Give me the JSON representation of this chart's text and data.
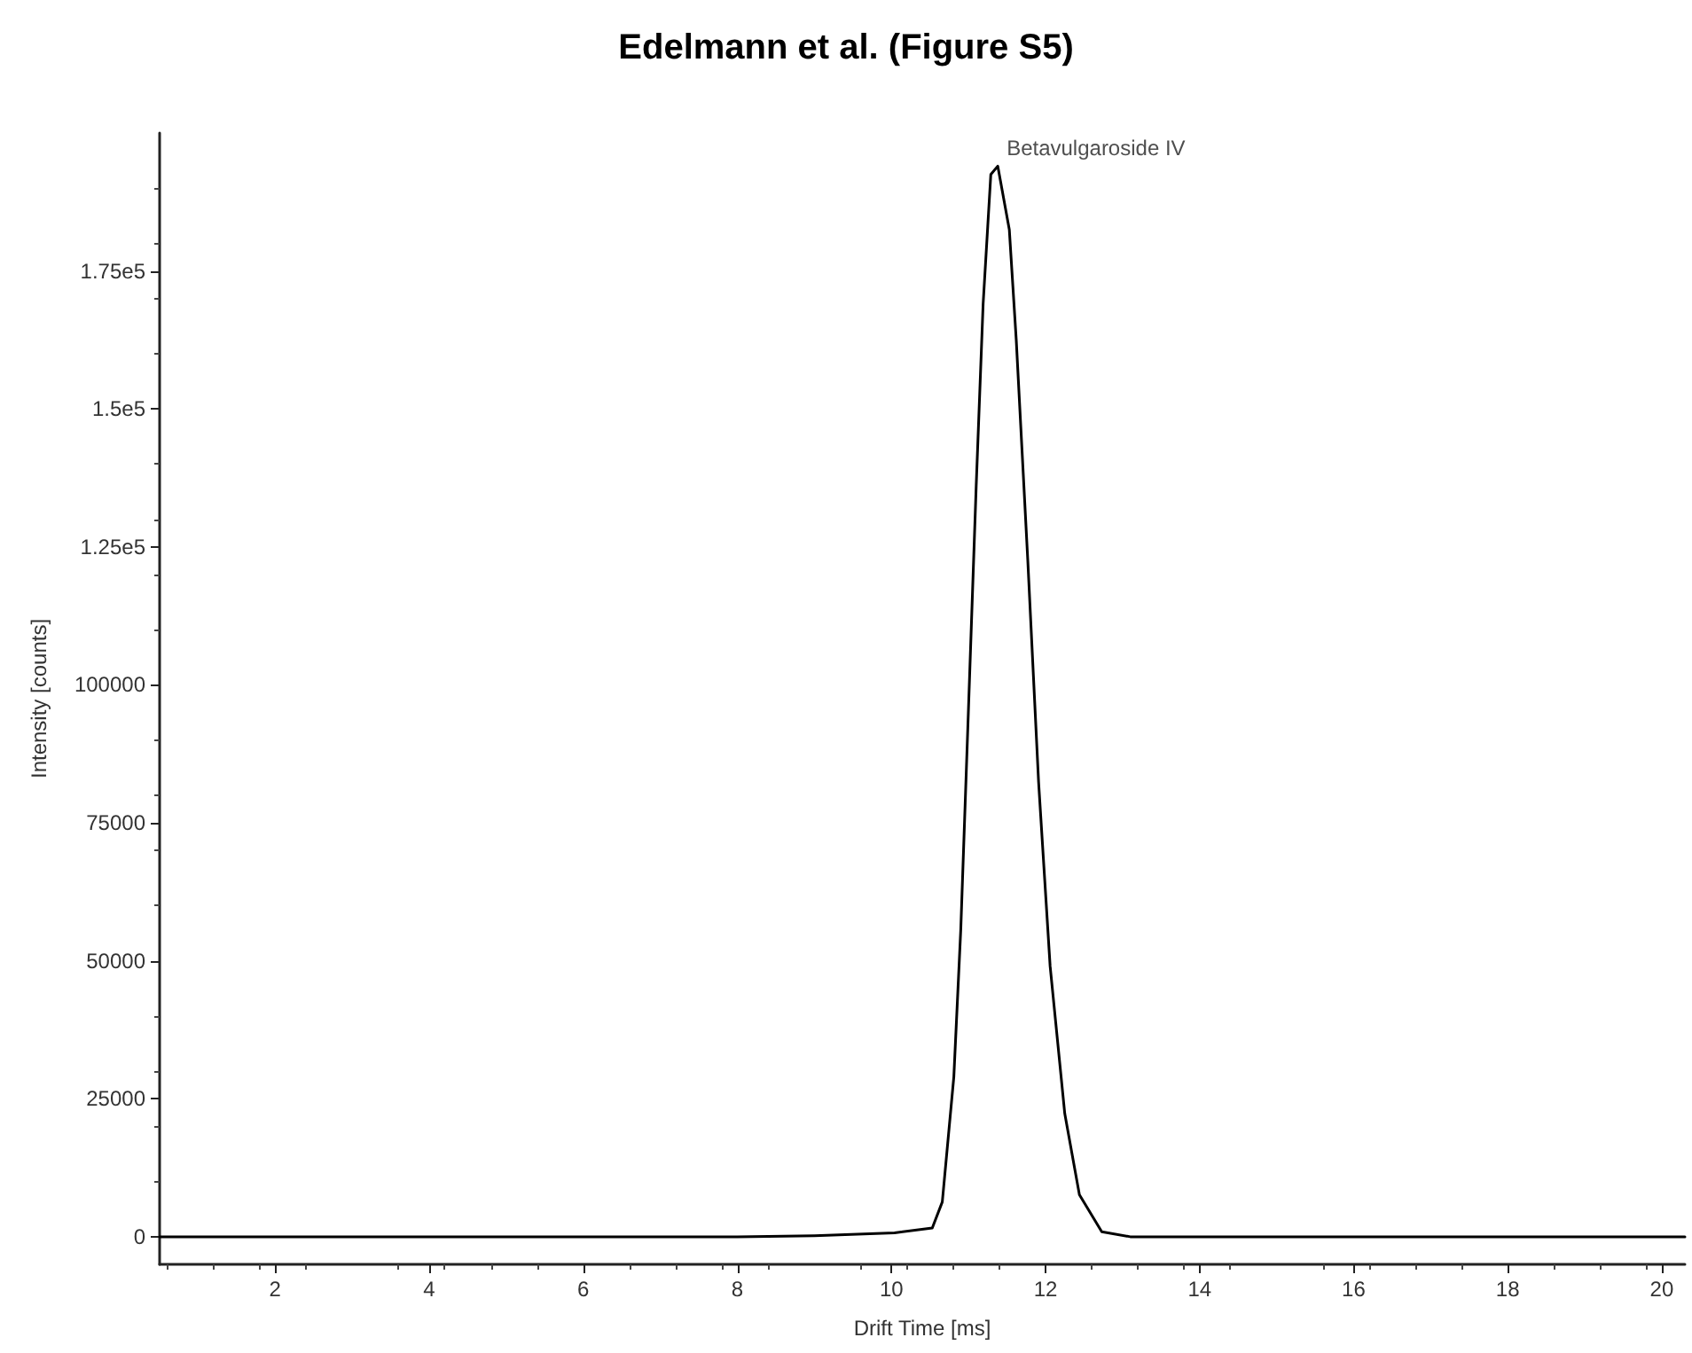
{
  "chart_data": {
    "type": "line",
    "title": "Edelmann et al. (Figure S5)",
    "xlabel": "Drift Time [ms]",
    "ylabel": "Intensity [counts]",
    "series": [
      {
        "color": "#000000",
        "x": [
          0.5,
          4,
          8,
          9,
          10.04,
          10.53,
          10.66,
          10.81,
          10.9,
          11.0,
          11.1,
          11.19,
          11.29,
          11.38,
          11.53,
          11.62,
          11.77,
          11.91,
          12.06,
          12.25,
          12.44,
          12.73,
          13.1,
          16,
          20.3
        ],
        "values": [
          0,
          0,
          0,
          200,
          700,
          1600,
          6300,
          29000,
          55700,
          95700,
          136000,
          169000,
          192500,
          194000,
          182500,
          162500,
          122500,
          82400,
          49000,
          22300,
          7600,
          900,
          0,
          0,
          0
        ]
      }
    ],
    "annotations": [
      {
        "text": "Betavulgaroside IV",
        "x": 11.38,
        "y": 194000
      }
    ],
    "xlim": [
      0.5,
      20.3
    ],
    "xticks": [
      2,
      4,
      6,
      8,
      10,
      12,
      14,
      16,
      18,
      20
    ],
    "ylim": [
      -5000,
      200000
    ],
    "yticks": [
      0,
      25000,
      50000,
      75000,
      100000,
      {
        "value": 125000,
        "label": "1.25e5"
      },
      {
        "value": 150000,
        "label": "1.5e5"
      },
      {
        "value": 175000,
        "label": "1.75e5"
      }
    ],
    "grid": false,
    "marker": "none",
    "line_style": "solid"
  }
}
